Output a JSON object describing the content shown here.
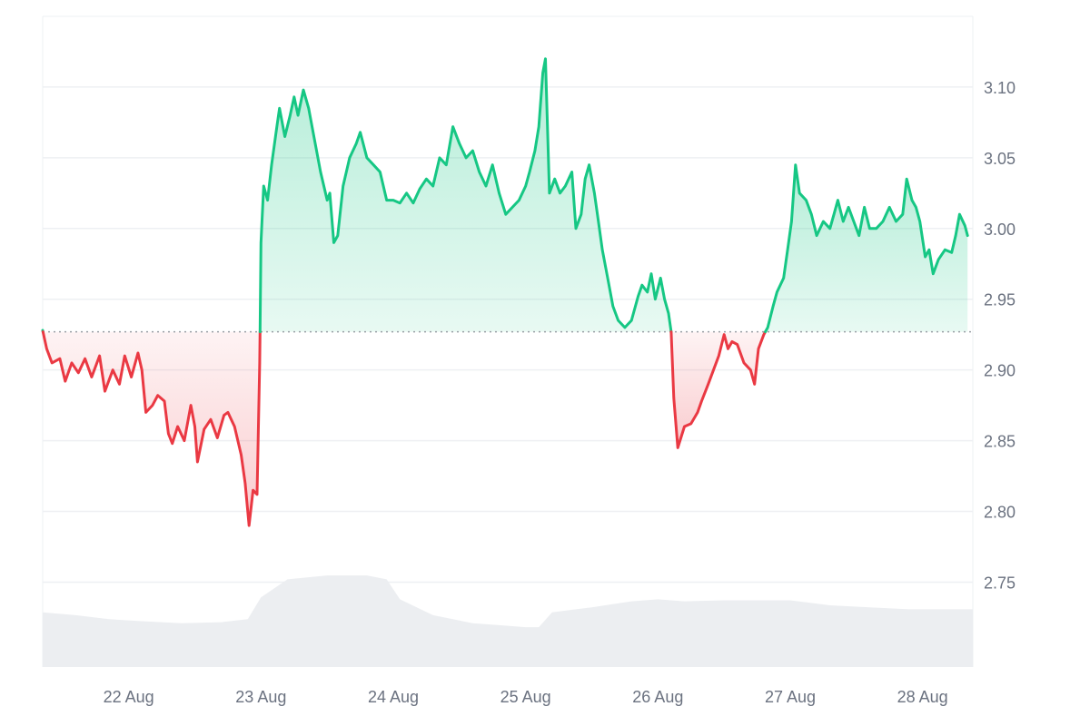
{
  "chart_data": {
    "type": "area",
    "title": "",
    "xlabel": "",
    "ylabel": "",
    "baseline": 2.927,
    "ylim": [
      2.69,
      3.15
    ],
    "y_ticks": [
      2.75,
      2.8,
      2.85,
      2.9,
      2.95,
      3.0,
      3.05,
      3.1
    ],
    "y_tick_labels": [
      "2.75",
      "2.80",
      "2.85",
      "2.90",
      "2.95",
      "3.00",
      "3.05",
      "3.10"
    ],
    "x_range": [
      21.35,
      28.38
    ],
    "x_ticks": [
      22,
      23,
      24,
      25,
      26,
      27,
      28
    ],
    "x_tick_labels": [
      "22 Aug",
      "23 Aug",
      "24 Aug",
      "25 Aug",
      "26 Aug",
      "27 Aug",
      "28 Aug"
    ],
    "colors": {
      "above_line": "#16c784",
      "above_fill": "#16c784",
      "below_line": "#ea3943",
      "below_fill": "#ea3943",
      "grid": "#eef0f3",
      "baseline": "#9aa0a6",
      "volume": "#eceef1"
    },
    "grid": true,
    "series": [
      {
        "values": [
          [
            21.35,
            2.928
          ],
          [
            21.38,
            2.915
          ],
          [
            21.42,
            2.905
          ],
          [
            21.48,
            2.908
          ],
          [
            21.52,
            2.892
          ],
          [
            21.57,
            2.905
          ],
          [
            21.62,
            2.898
          ],
          [
            21.67,
            2.908
          ],
          [
            21.72,
            2.895
          ],
          [
            21.78,
            2.91
          ],
          [
            21.82,
            2.885
          ],
          [
            21.88,
            2.9
          ],
          [
            21.93,
            2.89
          ],
          [
            21.97,
            2.91
          ],
          [
            22.02,
            2.895
          ],
          [
            22.07,
            2.912
          ],
          [
            22.1,
            2.9
          ],
          [
            22.13,
            2.87
          ],
          [
            22.18,
            2.875
          ],
          [
            22.22,
            2.882
          ],
          [
            22.27,
            2.878
          ],
          [
            22.3,
            2.855
          ],
          [
            22.33,
            2.848
          ],
          [
            22.37,
            2.86
          ],
          [
            22.42,
            2.85
          ],
          [
            22.47,
            2.875
          ],
          [
            22.5,
            2.86
          ],
          [
            22.52,
            2.835
          ],
          [
            22.57,
            2.858
          ],
          [
            22.62,
            2.865
          ],
          [
            22.67,
            2.852
          ],
          [
            22.72,
            2.868
          ],
          [
            22.75,
            2.87
          ],
          [
            22.8,
            2.86
          ],
          [
            22.85,
            2.84
          ],
          [
            22.88,
            2.82
          ],
          [
            22.91,
            2.79
          ],
          [
            22.94,
            2.815
          ],
          [
            22.97,
            2.812
          ],
          [
            22.99,
            2.905
          ],
          [
            23.0,
            2.99
          ],
          [
            23.02,
            3.03
          ],
          [
            23.05,
            3.02
          ],
          [
            23.08,
            3.045
          ],
          [
            23.12,
            3.072
          ],
          [
            23.14,
            3.085
          ],
          [
            23.18,
            3.065
          ],
          [
            23.22,
            3.08
          ],
          [
            23.25,
            3.093
          ],
          [
            23.28,
            3.08
          ],
          [
            23.32,
            3.098
          ],
          [
            23.36,
            3.085
          ],
          [
            23.4,
            3.065
          ],
          [
            23.45,
            3.04
          ],
          [
            23.5,
            3.02
          ],
          [
            23.52,
            3.025
          ],
          [
            23.55,
            2.99
          ],
          [
            23.58,
            2.995
          ],
          [
            23.62,
            3.03
          ],
          [
            23.67,
            3.05
          ],
          [
            23.72,
            3.06
          ],
          [
            23.75,
            3.068
          ],
          [
            23.8,
            3.05
          ],
          [
            23.85,
            3.045
          ],
          [
            23.9,
            3.04
          ],
          [
            23.95,
            3.02
          ],
          [
            24.0,
            3.02
          ],
          [
            24.05,
            3.018
          ],
          [
            24.1,
            3.025
          ],
          [
            24.15,
            3.018
          ],
          [
            24.2,
            3.028
          ],
          [
            24.25,
            3.035
          ],
          [
            24.3,
            3.03
          ],
          [
            24.35,
            3.05
          ],
          [
            24.4,
            3.045
          ],
          [
            24.45,
            3.072
          ],
          [
            24.5,
            3.06
          ],
          [
            24.55,
            3.05
          ],
          [
            24.6,
            3.055
          ],
          [
            24.65,
            3.04
          ],
          [
            24.7,
            3.03
          ],
          [
            24.75,
            3.045
          ],
          [
            24.8,
            3.025
          ],
          [
            24.85,
            3.01
          ],
          [
            24.9,
            3.015
          ],
          [
            24.95,
            3.02
          ],
          [
            25.0,
            3.03
          ],
          [
            25.03,
            3.04
          ],
          [
            25.07,
            3.055
          ],
          [
            25.1,
            3.072
          ],
          [
            25.13,
            3.11
          ],
          [
            25.15,
            3.12
          ],
          [
            25.18,
            3.025
          ],
          [
            25.22,
            3.035
          ],
          [
            25.26,
            3.025
          ],
          [
            25.3,
            3.03
          ],
          [
            25.35,
            3.04
          ],
          [
            25.38,
            3.0
          ],
          [
            25.42,
            3.01
          ],
          [
            25.45,
            3.035
          ],
          [
            25.48,
            3.045
          ],
          [
            25.52,
            3.025
          ],
          [
            25.55,
            3.005
          ],
          [
            25.58,
            2.985
          ],
          [
            25.62,
            2.965
          ],
          [
            25.66,
            2.945
          ],
          [
            25.7,
            2.935
          ],
          [
            25.75,
            2.93
          ],
          [
            25.8,
            2.935
          ],
          [
            25.85,
            2.952
          ],
          [
            25.88,
            2.96
          ],
          [
            25.92,
            2.955
          ],
          [
            25.95,
            2.968
          ],
          [
            25.98,
            2.95
          ],
          [
            26.02,
            2.965
          ],
          [
            26.05,
            2.95
          ],
          [
            26.08,
            2.94
          ],
          [
            26.1,
            2.927
          ],
          [
            26.12,
            2.88
          ],
          [
            26.15,
            2.845
          ],
          [
            26.2,
            2.86
          ],
          [
            26.25,
            2.862
          ],
          [
            26.3,
            2.87
          ],
          [
            26.33,
            2.878
          ],
          [
            26.38,
            2.89
          ],
          [
            26.42,
            2.9
          ],
          [
            26.46,
            2.91
          ],
          [
            26.5,
            2.925
          ],
          [
            26.53,
            2.915
          ],
          [
            26.56,
            2.92
          ],
          [
            26.6,
            2.918
          ],
          [
            26.65,
            2.905
          ],
          [
            26.7,
            2.9
          ],
          [
            26.73,
            2.89
          ],
          [
            26.76,
            2.915
          ],
          [
            26.8,
            2.925
          ],
          [
            26.83,
            2.93
          ],
          [
            26.87,
            2.945
          ],
          [
            26.9,
            2.955
          ],
          [
            26.95,
            2.965
          ],
          [
            26.98,
            2.985
          ],
          [
            27.01,
            3.005
          ],
          [
            27.04,
            3.045
          ],
          [
            27.07,
            3.025
          ],
          [
            27.12,
            3.02
          ],
          [
            27.16,
            3.01
          ],
          [
            27.2,
            2.995
          ],
          [
            27.25,
            3.005
          ],
          [
            27.3,
            3.0
          ],
          [
            27.33,
            3.01
          ],
          [
            27.36,
            3.02
          ],
          [
            27.4,
            3.005
          ],
          [
            27.44,
            3.015
          ],
          [
            27.48,
            3.005
          ],
          [
            27.52,
            2.995
          ],
          [
            27.56,
            3.015
          ],
          [
            27.6,
            3.0
          ],
          [
            27.65,
            3.0
          ],
          [
            27.7,
            3.005
          ],
          [
            27.75,
            3.015
          ],
          [
            27.8,
            3.005
          ],
          [
            27.85,
            3.01
          ],
          [
            27.88,
            3.035
          ],
          [
            27.92,
            3.02
          ],
          [
            27.95,
            3.015
          ],
          [
            27.98,
            3.005
          ],
          [
            28.02,
            2.98
          ],
          [
            28.05,
            2.985
          ],
          [
            28.08,
            2.968
          ],
          [
            28.12,
            2.978
          ],
          [
            28.17,
            2.985
          ],
          [
            28.22,
            2.983
          ],
          [
            28.25,
            2.995
          ],
          [
            28.28,
            3.01
          ],
          [
            28.32,
            3.002
          ],
          [
            28.34,
            2.995
          ]
        ]
      }
    ],
    "volume": [
      [
        21.35,
        0.55
      ],
      [
        21.6,
        0.52
      ],
      [
        21.85,
        0.48
      ],
      [
        22.1,
        0.46
      ],
      [
        22.4,
        0.44
      ],
      [
        22.7,
        0.45
      ],
      [
        22.9,
        0.48
      ],
      [
        23.0,
        0.7
      ],
      [
        23.2,
        0.88
      ],
      [
        23.5,
        0.92
      ],
      [
        23.8,
        0.92
      ],
      [
        23.95,
        0.88
      ],
      [
        24.05,
        0.68
      ],
      [
        24.3,
        0.52
      ],
      [
        24.6,
        0.44
      ],
      [
        24.8,
        0.42
      ],
      [
        25.0,
        0.4
      ],
      [
        25.1,
        0.4
      ],
      [
        25.2,
        0.55
      ],
      [
        25.5,
        0.6
      ],
      [
        25.8,
        0.66
      ],
      [
        26.0,
        0.68
      ],
      [
        26.2,
        0.66
      ],
      [
        26.5,
        0.67
      ],
      [
        26.8,
        0.67
      ],
      [
        27.0,
        0.67
      ],
      [
        27.3,
        0.62
      ],
      [
        27.6,
        0.6
      ],
      [
        27.9,
        0.58
      ],
      [
        28.2,
        0.58
      ],
      [
        28.38,
        0.58
      ]
    ]
  }
}
